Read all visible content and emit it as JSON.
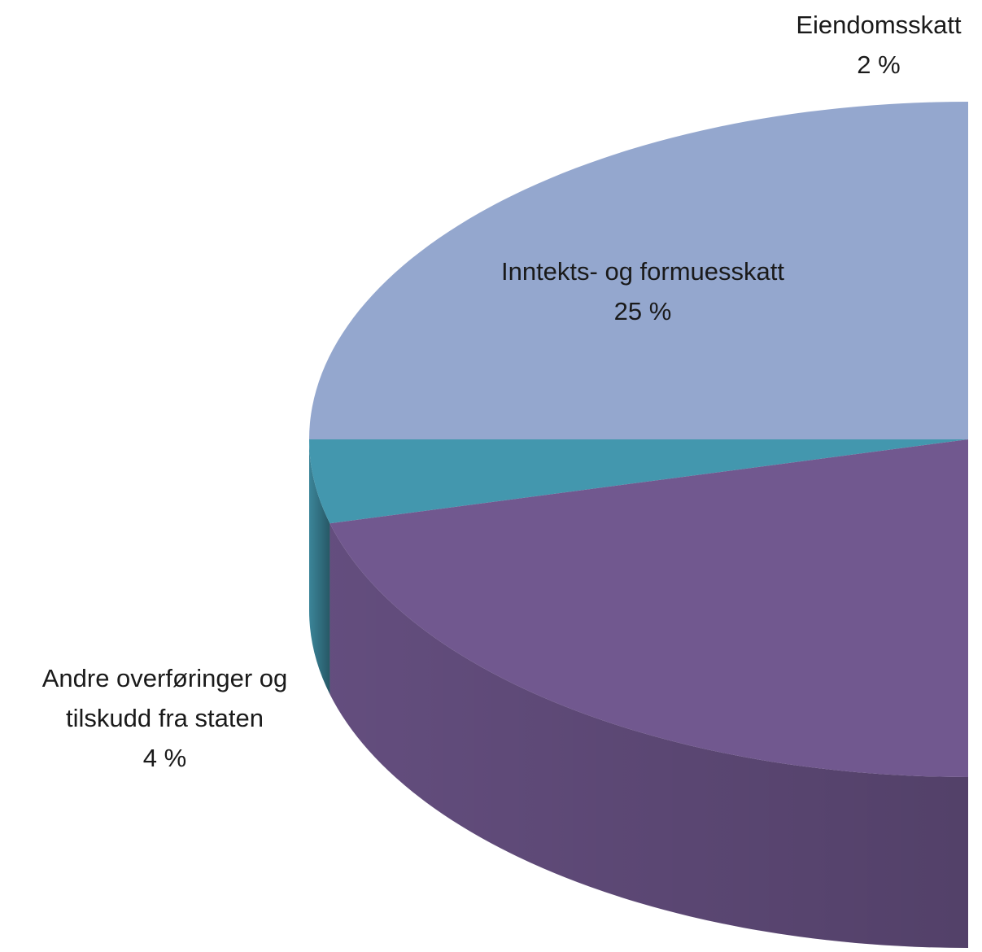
{
  "chart_data": {
    "type": "pie3d",
    "categories": [
      "Eiendomsskatt",
      "Inntekts- og formuesskatt",
      "Andre overføringer og tilskudd fra staten",
      null
    ],
    "values": [
      2,
      25,
      4,
      45
    ],
    "value_labels": [
      "2 %",
      "25 %",
      "4 %",
      null
    ],
    "colors": [
      "#d0918f",
      "#94a7ce",
      "#4397ae",
      "#71588f"
    ]
  }
}
